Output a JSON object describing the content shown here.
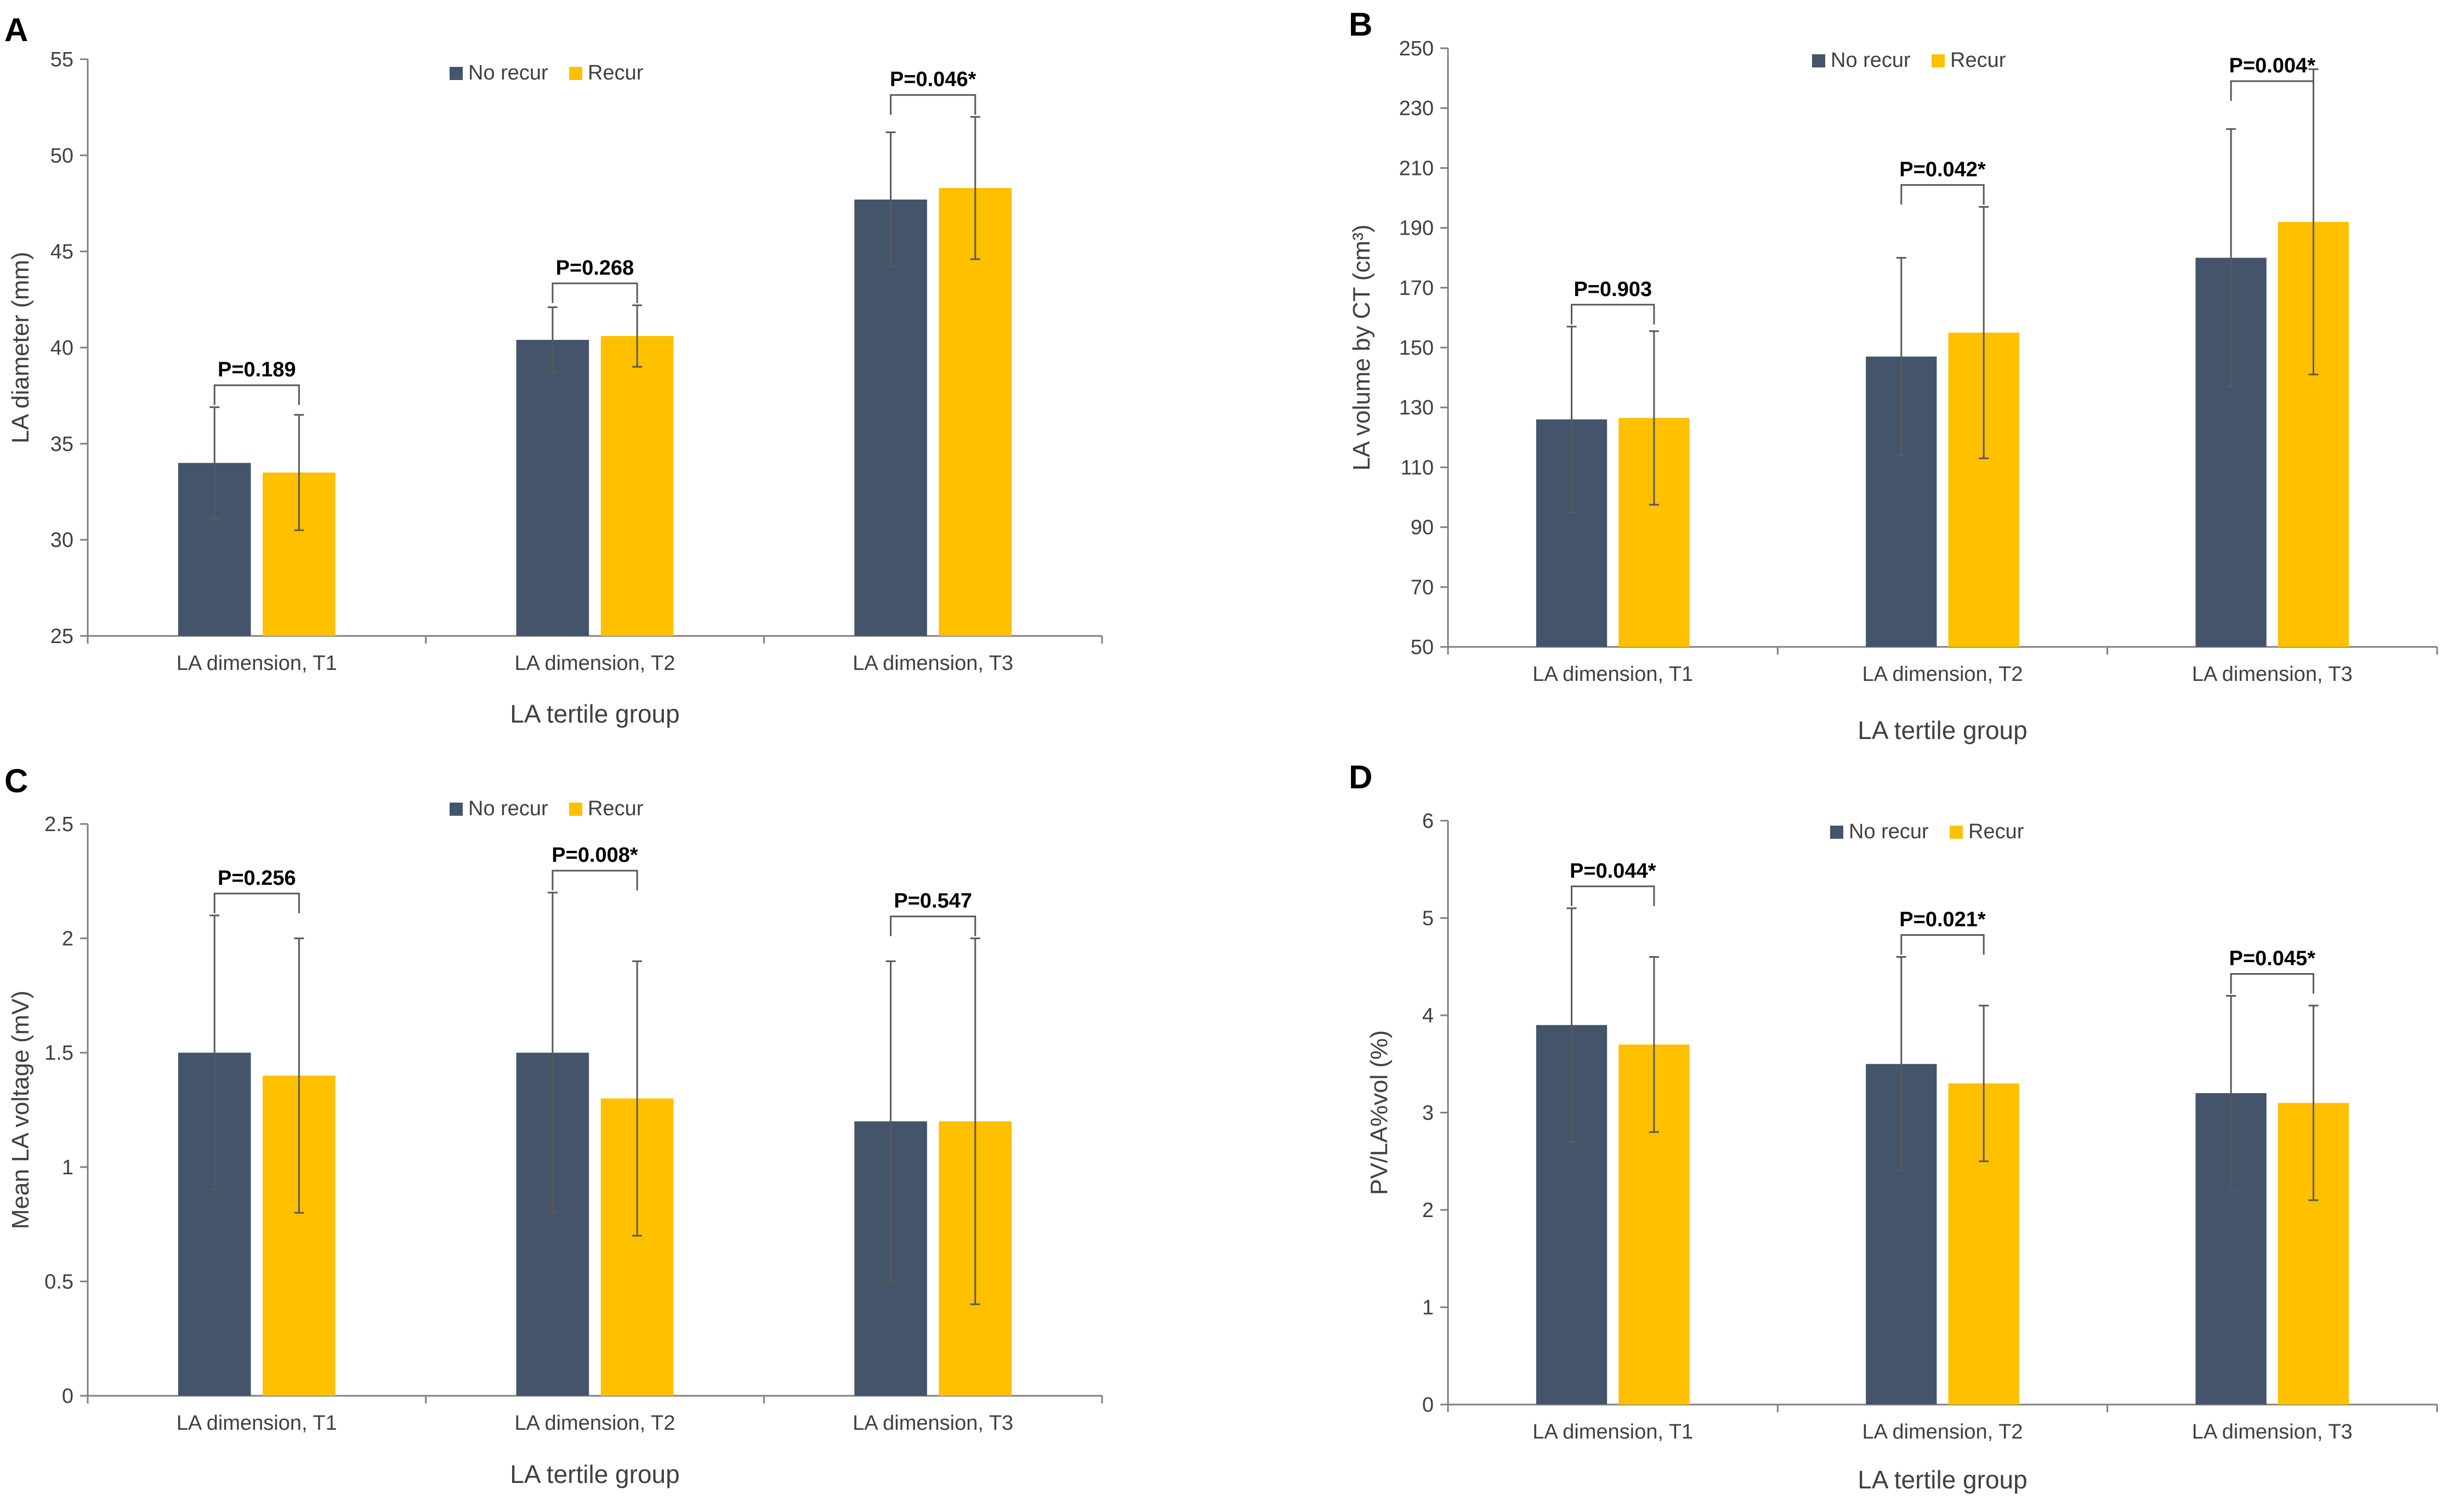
{
  "colors": {
    "no_recur": "#44546a",
    "recur": "#ffc000",
    "axis": "#7f7f7f",
    "errbar": "#595959",
    "text": "#404040",
    "bold": "#000000"
  },
  "legend": {
    "no_recur": "No recur",
    "recur": "Recur"
  },
  "chart_data": [
    {
      "panel": "A",
      "type": "bar",
      "categories": [
        "LA dimension, T1",
        "LA dimension, T2",
        "LA dimension, T3"
      ],
      "series": [
        {
          "name": "No recur",
          "values": [
            34.0,
            40.4,
            47.7
          ],
          "errors": [
            2.9,
            1.7,
            3.5
          ]
        },
        {
          "name": "Recur",
          "values": [
            33.5,
            40.6,
            48.3
          ],
          "errors": [
            3.0,
            1.6,
            3.7
          ]
        }
      ],
      "p_values": [
        "P=0.189",
        "P=0.268",
        "P=0.046*"
      ],
      "xlabel": "LA tertile group",
      "ylabel": "LA diameter (mm)",
      "ylim": [
        25,
        55
      ],
      "yticks": [
        25,
        30,
        35,
        40,
        45,
        50,
        55
      ],
      "ytick_labels": [
        "25",
        "30",
        "35",
        "40",
        "45",
        "50",
        "55"
      ],
      "grid": false,
      "legend_position": "top-center"
    },
    {
      "panel": "B",
      "type": "bar",
      "categories": [
        "LA dimension, T1",
        "LA dimension, T2",
        "LA dimension, T3"
      ],
      "series": [
        {
          "name": "No recur",
          "values": [
            126,
            147,
            180
          ],
          "errors": [
            31,
            33,
            43
          ]
        },
        {
          "name": "Recur",
          "values": [
            126.5,
            155,
            192
          ],
          "errors": [
            29,
            42,
            51
          ]
        }
      ],
      "p_values": [
        "P=0.903",
        "P=0.042*",
        "P=0.004*"
      ],
      "xlabel": "LA tertile group",
      "ylabel": "LA volume by CT (cm³)",
      "ylim": [
        50,
        250
      ],
      "yticks": [
        50,
        70,
        90,
        110,
        130,
        150,
        170,
        190,
        210,
        230,
        250
      ],
      "ytick_labels": [
        "50",
        "70",
        "90",
        "110",
        "130",
        "150",
        "170",
        "190",
        "210",
        "230",
        "250"
      ],
      "grid": false,
      "legend_position": "top-center"
    },
    {
      "panel": "C",
      "type": "bar",
      "categories": [
        "LA dimension, T1",
        "LA dimension, T2",
        "LA dimension, T3"
      ],
      "series": [
        {
          "name": "No recur",
          "values": [
            1.5,
            1.5,
            1.2
          ],
          "errors": [
            0.6,
            0.7,
            0.7
          ]
        },
        {
          "name": "Recur",
          "values": [
            1.4,
            1.3,
            1.2
          ],
          "errors": [
            0.6,
            0.6,
            0.8
          ]
        }
      ],
      "p_values": [
        "P=0.256",
        "P=0.008*",
        "P=0.547"
      ],
      "xlabel": "LA tertile group",
      "ylabel": "Mean LA voltage (mV)",
      "ylim": [
        0,
        2.5
      ],
      "yticks": [
        0,
        0.5,
        1,
        1.5,
        2,
        2.5
      ],
      "ytick_labels": [
        "0",
        "0.5",
        "1",
        "1.5",
        "2",
        "2.5"
      ],
      "grid": false,
      "legend_position": "top-center"
    },
    {
      "panel": "D",
      "type": "bar",
      "categories": [
        "LA dimension, T1",
        "LA dimension, T2",
        "LA dimension, T3"
      ],
      "series": [
        {
          "name": "No recur",
          "values": [
            3.9,
            3.5,
            3.2
          ],
          "errors": [
            1.2,
            1.1,
            1.0
          ]
        },
        {
          "name": "Recur",
          "values": [
            3.7,
            3.3,
            3.1
          ],
          "errors": [
            0.9,
            0.8,
            1.0
          ]
        }
      ],
      "p_values": [
        "P=0.044*",
        "P=0.021*",
        "P=0.045*"
      ],
      "xlabel": "LA tertile group",
      "ylabel": "PV/LA%vol (%)",
      "ylim": [
        0,
        6
      ],
      "yticks": [
        0,
        1,
        2,
        3,
        4,
        5,
        6
      ],
      "ytick_labels": [
        "0",
        "1",
        "2",
        "3",
        "4",
        "5",
        "6"
      ],
      "grid": false,
      "legend_position": "top-center"
    }
  ]
}
